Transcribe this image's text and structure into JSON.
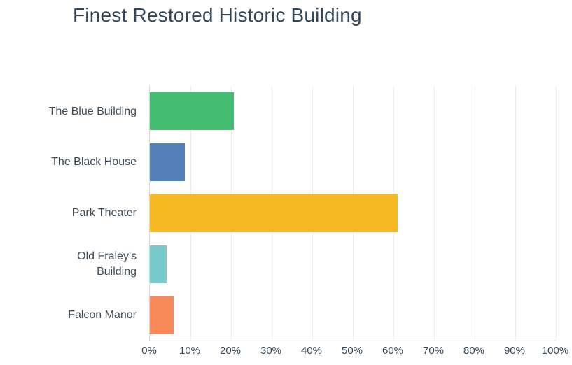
{
  "chart_data": {
    "type": "bar",
    "orientation": "horizontal",
    "title": "Finest Restored Historic Building",
    "categories": [
      "The Blue Building",
      "The Black House",
      "Park Theater",
      "Old Fraley's Building",
      "Falcon Manor"
    ],
    "values": [
      20.7,
      8.6,
      61,
      4.1,
      5.9
    ],
    "unit": "%",
    "bar_colors": [
      "#43bd72",
      "#5480ba",
      "#f5b820",
      "#78c9cb",
      "#f78a58"
    ],
    "xlabel": "",
    "ylabel": "",
    "xlim": [
      0,
      100
    ],
    "x_tick_values": [
      0,
      10,
      20,
      30,
      40,
      50,
      60,
      70,
      80,
      90,
      100
    ],
    "x_tick_labels": [
      "0%",
      "10%",
      "20%",
      "30%",
      "40%",
      "50%",
      "60%",
      "70%",
      "80%",
      "90%",
      "100%"
    ],
    "grid": "vertical-only",
    "legend": "none",
    "colors": {
      "background": "#ffffff",
      "title_text": "#33475b",
      "category_text": "#3b4a56",
      "tick_text": "#33475b",
      "gridline": "#ededed",
      "axis_line": "#d8d8d8"
    }
  }
}
